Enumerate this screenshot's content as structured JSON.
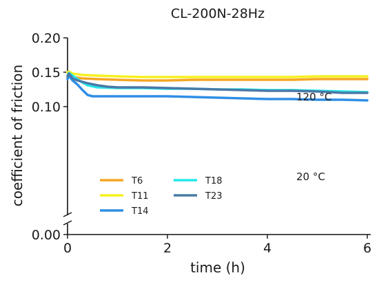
{
  "chart_data": {
    "type": "line",
    "title": "CL-200N-28Hz",
    "xlabel": "time (h)",
    "ylabel": "coefficient of friction",
    "xlim": [
      0,
      6
    ],
    "ylim": [
      0.0,
      0.2
    ],
    "y_axis_break": "between 0.00 and 0.085",
    "x_ticks": [
      "0",
      "2",
      "4",
      "6"
    ],
    "y_ticks": [
      "0.00",
      "0.10",
      "0.15",
      "0.20"
    ],
    "grid": false,
    "legend_position": "lower-left",
    "annotations": [
      "120 °C",
      "20 °C"
    ],
    "series": [
      {
        "name": "T6",
        "color": "#f5a623",
        "x": [
          0,
          0.03,
          0.1,
          0.3,
          0.6,
          1,
          1.5,
          2,
          2.5,
          3,
          3.5,
          4,
          4.5,
          5,
          5.5,
          6
        ],
        "y": [
          0.142,
          0.146,
          0.143,
          0.141,
          0.14,
          0.139,
          0.138,
          0.138,
          0.139,
          0.139,
          0.139,
          0.139,
          0.139,
          0.14,
          0.14,
          0.14
        ]
      },
      {
        "name": "T11",
        "color": "#f7f020",
        "x": [
          0,
          0.03,
          0.1,
          0.3,
          0.6,
          1,
          1.5,
          2,
          2.5,
          3,
          3.5,
          4,
          4.5,
          5,
          5.5,
          6
        ],
        "y": [
          0.15,
          0.151,
          0.148,
          0.146,
          0.145,
          0.144,
          0.143,
          0.143,
          0.143,
          0.143,
          0.143,
          0.143,
          0.143,
          0.144,
          0.144,
          0.144
        ]
      },
      {
        "name": "T14",
        "color": "#2f8ee6",
        "x": [
          0,
          0.03,
          0.1,
          0.2,
          0.3,
          0.4,
          0.5,
          0.7,
          1,
          1.5,
          2,
          2.5,
          3,
          3.5,
          4,
          4.5,
          5,
          5.5,
          6
        ],
        "y": [
          0.14,
          0.145,
          0.138,
          0.132,
          0.124,
          0.117,
          0.115,
          0.115,
          0.115,
          0.115,
          0.115,
          0.114,
          0.113,
          0.112,
          0.111,
          0.111,
          0.11,
          0.11,
          0.109
        ]
      },
      {
        "name": "T18",
        "color": "#22e8e8",
        "x": [
          0,
          0.03,
          0.1,
          0.2,
          0.3,
          0.4,
          0.6,
          1,
          1.5,
          2,
          2.5,
          3,
          3.5,
          4,
          4.5,
          5,
          5.5,
          6
        ],
        "y": [
          0.145,
          0.149,
          0.145,
          0.14,
          0.135,
          0.131,
          0.128,
          0.127,
          0.127,
          0.126,
          0.126,
          0.125,
          0.125,
          0.124,
          0.124,
          0.123,
          0.122,
          0.121
        ]
      },
      {
        "name": "T23",
        "color": "#4a7aa8",
        "x": [
          0,
          0.03,
          0.1,
          0.2,
          0.4,
          0.6,
          0.8,
          1,
          1.5,
          2,
          2.5,
          3,
          3.5,
          4,
          4.5,
          5,
          5.5,
          6
        ],
        "y": [
          0.144,
          0.148,
          0.141,
          0.138,
          0.134,
          0.131,
          0.129,
          0.128,
          0.128,
          0.127,
          0.126,
          0.125,
          0.124,
          0.123,
          0.123,
          0.122,
          0.12,
          0.12
        ]
      }
    ]
  }
}
